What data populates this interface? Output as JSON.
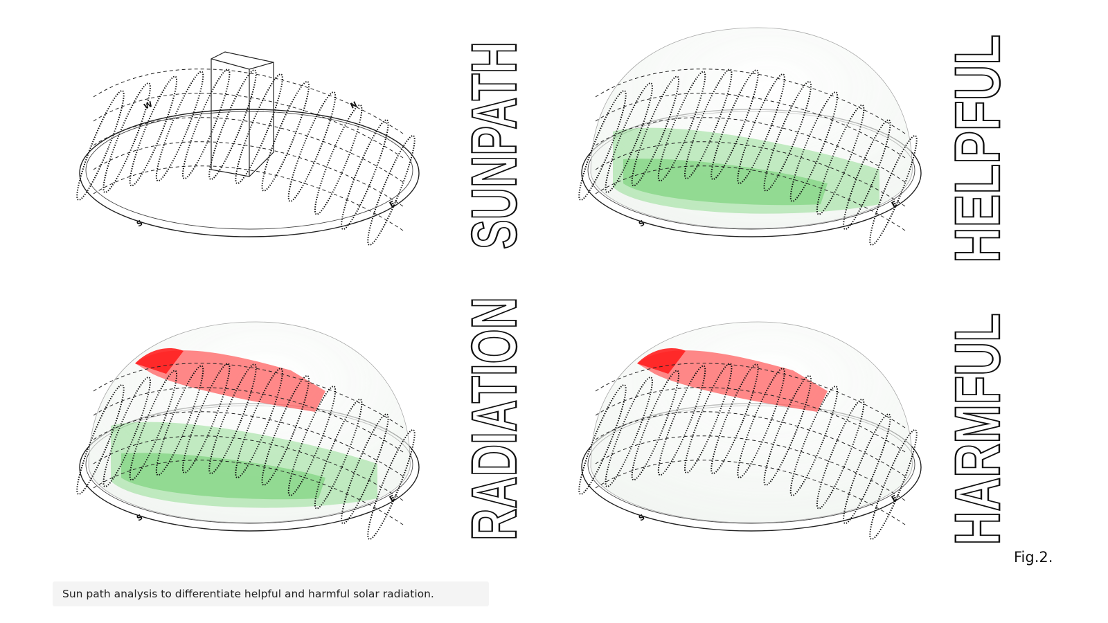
{
  "panels": [
    {
      "title": "SUNPATH",
      "compass": [
        "W",
        "N",
        "S",
        "E"
      ]
    },
    {
      "title": "HELPFUL",
      "compass": [
        "S",
        "E"
      ]
    },
    {
      "title": "RADIATION",
      "compass": [
        "S",
        "E"
      ]
    },
    {
      "title": "HARMFUL",
      "compass": [
        "S",
        "E"
      ]
    }
  ],
  "figure_label": "Fig.2.",
  "caption": "Sun path analysis to differentiate helpful and harmful solar radiation."
}
